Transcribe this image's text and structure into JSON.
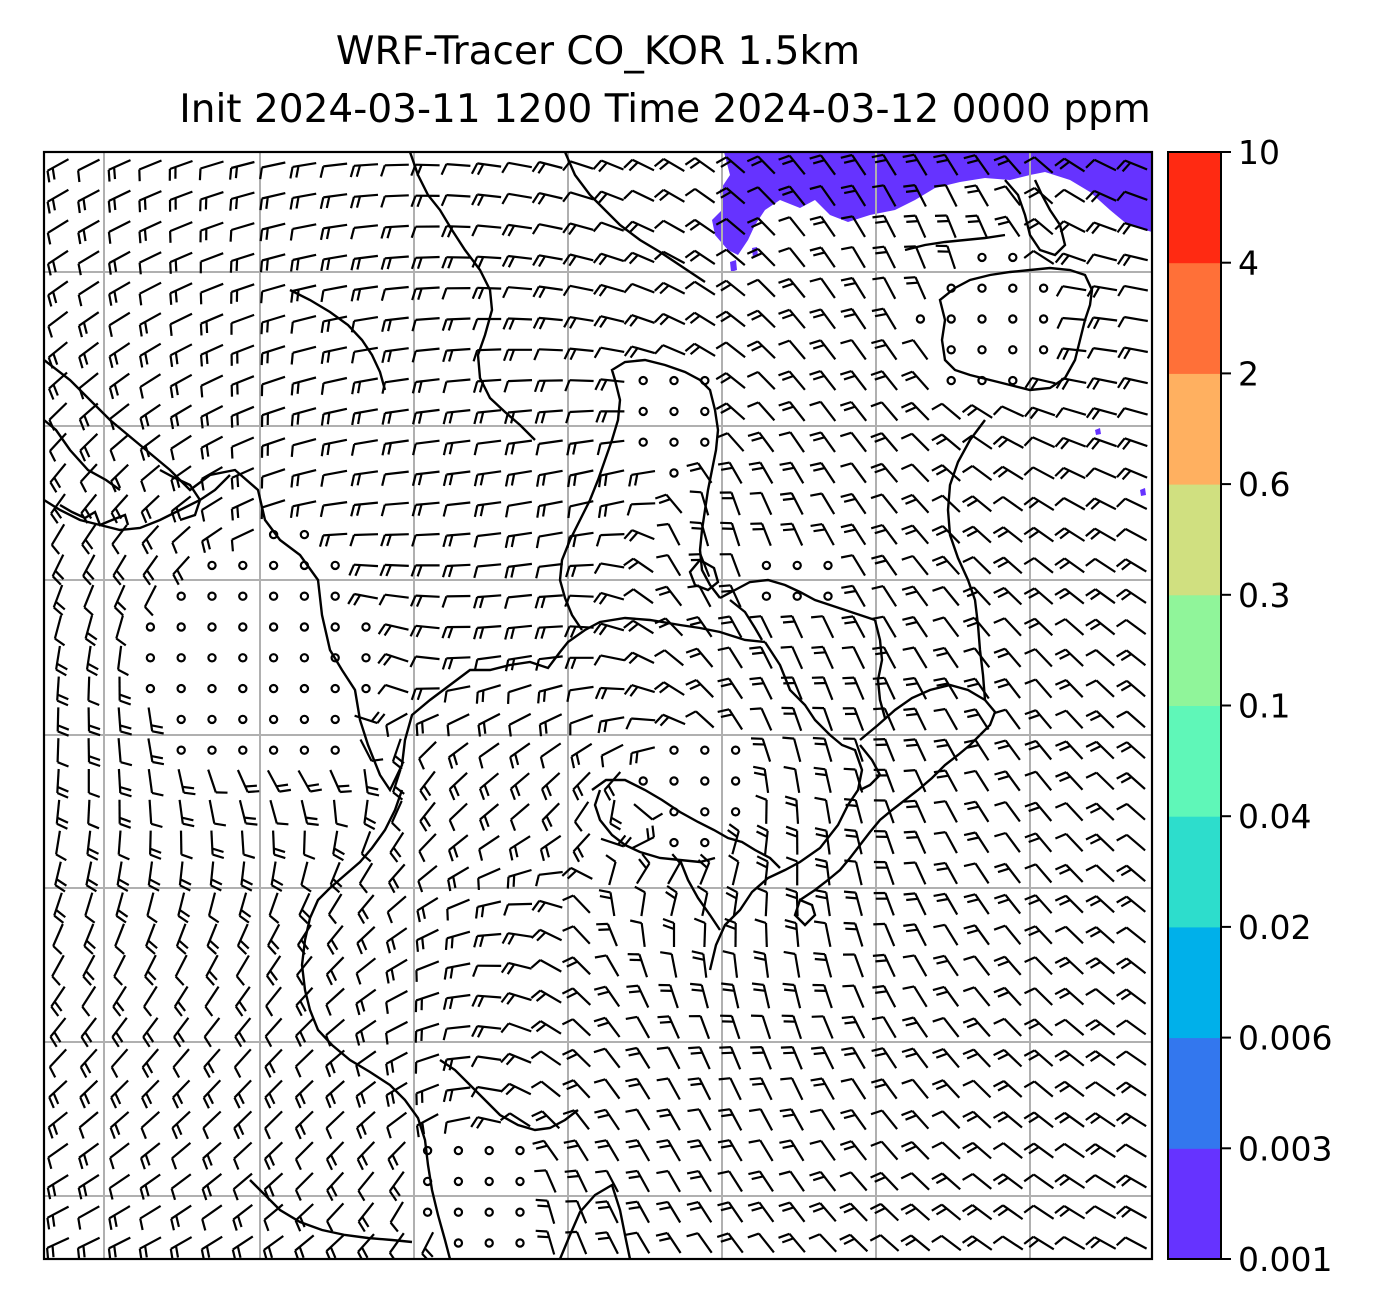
{
  "title": {
    "line1": "WRF-Tracer CO_KOR 1.5km",
    "line2": "Init 2024-03-11 1200 Time 2024-03-12 0000 ppm"
  },
  "colorbar": {
    "levels": [
      "0.001",
      "0.003",
      "0.006",
      "0.02",
      "0.04",
      "0.1",
      "0.3",
      "0.6",
      "2",
      "4",
      "10"
    ],
    "colors": [
      "#6633ff",
      "#3377ee",
      "#00b0ea",
      "#2dddcc",
      "#5ff7b8",
      "#90f59a",
      "#d0e080",
      "#ffb060",
      "#ff7038",
      "#ff2a12"
    ]
  },
  "map": {
    "tracer_fill_color": "#6633ff",
    "gridline_color": "#b0b0b0",
    "barb_color": "#000000"
  }
}
